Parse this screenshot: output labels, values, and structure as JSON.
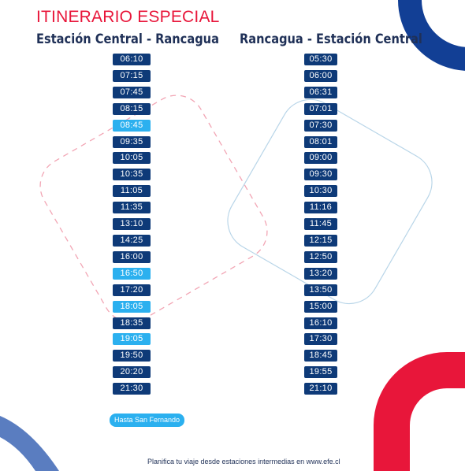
{
  "title": "ITINERARIO ESPECIAL",
  "left_route": {
    "name": "Estación Central - Rancagua",
    "departures": [
      {
        "time": "06:10",
        "variant": "normal"
      },
      {
        "time": "07:15",
        "variant": "normal"
      },
      {
        "time": "07:45",
        "variant": "normal"
      },
      {
        "time": "08:15",
        "variant": "normal"
      },
      {
        "time": "08:45",
        "variant": "alt"
      },
      {
        "time": "09:35",
        "variant": "normal"
      },
      {
        "time": "10:05",
        "variant": "normal"
      },
      {
        "time": "10:35",
        "variant": "normal"
      },
      {
        "time": "11:05",
        "variant": "normal"
      },
      {
        "time": "11:35",
        "variant": "normal"
      },
      {
        "time": "13:10",
        "variant": "normal"
      },
      {
        "time": "14:25",
        "variant": "normal"
      },
      {
        "time": "16:00",
        "variant": "normal"
      },
      {
        "time": "16:50",
        "variant": "alt"
      },
      {
        "time": "17:20",
        "variant": "normal"
      },
      {
        "time": "18:05",
        "variant": "alt"
      },
      {
        "time": "18:35",
        "variant": "normal"
      },
      {
        "time": "19:05",
        "variant": "alt"
      },
      {
        "time": "19:50",
        "variant": "normal"
      },
      {
        "time": "20:20",
        "variant": "normal"
      },
      {
        "time": "21:30",
        "variant": "normal"
      }
    ]
  },
  "right_route": {
    "name": "Rancagua - Estación Central",
    "departures": [
      {
        "time": "05:30",
        "variant": "normal"
      },
      {
        "time": "06:00",
        "variant": "normal"
      },
      {
        "time": "06:31",
        "variant": "normal"
      },
      {
        "time": "07:01",
        "variant": "normal"
      },
      {
        "time": "07:30",
        "variant": "normal"
      },
      {
        "time": "08:01",
        "variant": "normal"
      },
      {
        "time": "09:00",
        "variant": "normal"
      },
      {
        "time": "09:30",
        "variant": "normal"
      },
      {
        "time": "10:30",
        "variant": "normal"
      },
      {
        "time": "11:16",
        "variant": "normal"
      },
      {
        "time": "11:45",
        "variant": "normal"
      },
      {
        "time": "12:15",
        "variant": "normal"
      },
      {
        "time": "12:50",
        "variant": "normal"
      },
      {
        "time": "13:20",
        "variant": "normal"
      },
      {
        "time": "13:50",
        "variant": "normal"
      },
      {
        "time": "15:00",
        "variant": "normal"
      },
      {
        "time": "16:10",
        "variant": "normal"
      },
      {
        "time": "17:30",
        "variant": "normal"
      },
      {
        "time": "18:45",
        "variant": "normal"
      },
      {
        "time": "19:55",
        "variant": "normal"
      },
      {
        "time": "21:10",
        "variant": "normal"
      }
    ]
  },
  "legend": {
    "label": "Hasta San Fernando"
  },
  "footer": "Planifica tu viaje desde estaciones intermedias en www.efe.cl",
  "colors": {
    "title": "#e8163a",
    "heading": "#1f3057",
    "badge_normal": "#0e3a78",
    "badge_alt": "#2bb0ef",
    "decor_blue": "#123f95",
    "decor_red": "#e8163a",
    "decor_light_blue": "#5a7dc0"
  }
}
